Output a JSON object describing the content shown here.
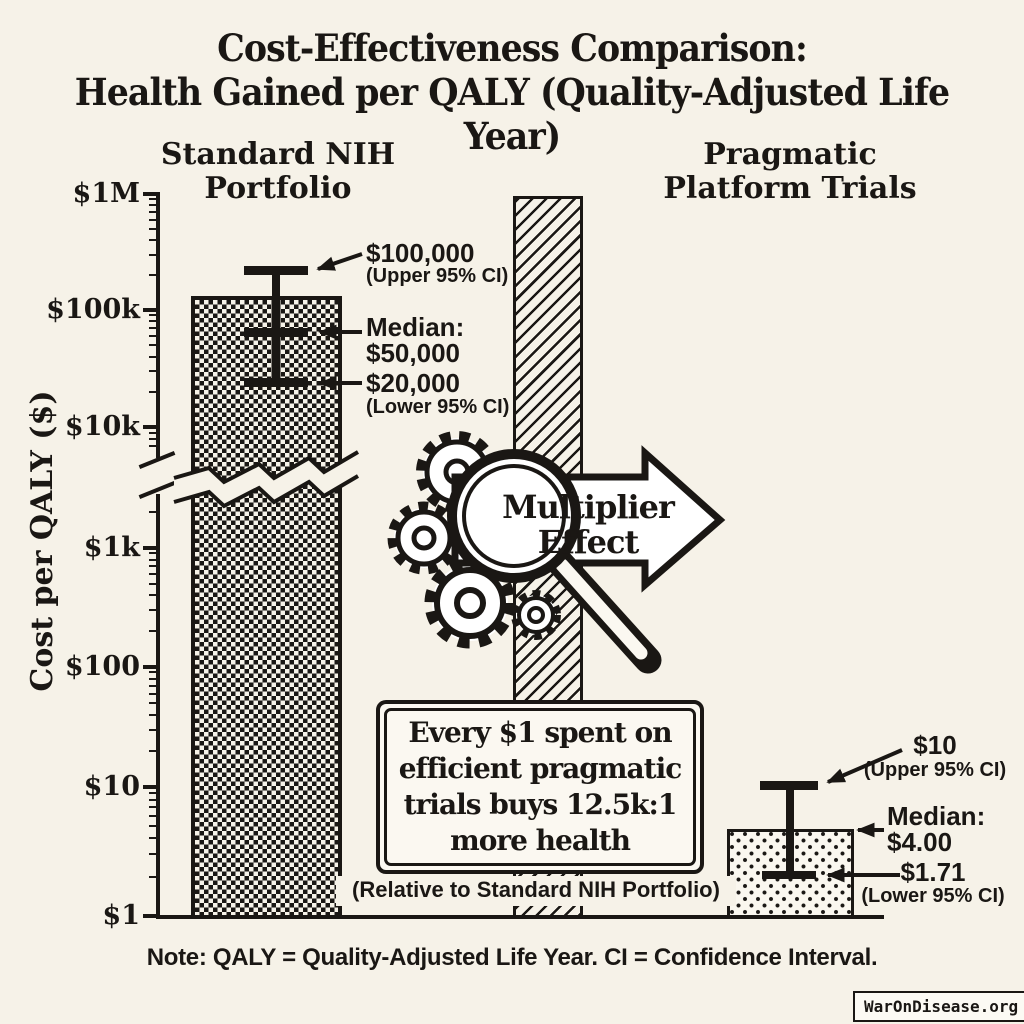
{
  "colors": {
    "background": "#f6f2e8",
    "ink": "#1a1714"
  },
  "title": {
    "line1": "Cost-Effectiveness Comparison:",
    "line2": "Health Gained per QALY (Quality-Adjusted Life Year)"
  },
  "columns": {
    "left_header": "Standard NIH\nPortfolio",
    "right_header": "Pragmatic\nPlatform Trials"
  },
  "y_axis": {
    "label": "Cost per QALY ($)",
    "ticks": [
      "$1M",
      "$100k",
      "$10k",
      "$1k",
      "$100",
      "$10",
      "$1"
    ]
  },
  "left_annotations": {
    "upper_value": "$100,000",
    "upper_caption": "(Upper 95% CI)",
    "median_label": "Median:",
    "median_value": "$50,000",
    "lower_value": "$20,000",
    "lower_caption": "(Lower 95% CI)"
  },
  "right_annotations": {
    "upper_value": "$10",
    "upper_caption": "(Upper 95% CI)",
    "median_label": "Median:",
    "median_value": "$4.00",
    "lower_value": "$1.71",
    "lower_caption": "(Lower 95% CI)"
  },
  "multiplier": {
    "line1": "Multiplier",
    "line2": "Effect"
  },
  "callout": {
    "text": "Every $1 spent on\nefficient pragmatic\ntrials buys 12.5k:1\nmore health",
    "subtext": "(Relative to Standard NIH Portfolio)"
  },
  "note": "Note: QALY = Quality-Adjusted Life Year. CI = Confidence Interval.",
  "watermark": "WarOnDisease.org",
  "chart_data": {
    "type": "bar",
    "title": "Cost-Effectiveness Comparison: Health Gained per QALY (Quality-Adjusted Life Year)",
    "ylabel": "Cost per QALY ($)",
    "yscale": "log",
    "ylim": [
      1,
      1000000
    ],
    "ytick_labels": [
      "$1M",
      "$100k",
      "$10k",
      "$1k",
      "$100",
      "$10",
      "$1"
    ],
    "axis_break_between": [
      "$10k",
      "$1k"
    ],
    "categories": [
      "Standard NIH Portfolio",
      "Pragmatic Platform Trials"
    ],
    "series": [
      {
        "name": "Standard NIH Portfolio",
        "median": 50000,
        "upper_95_ci": 100000,
        "lower_95_ci": 20000
      },
      {
        "name": "Pragmatic Platform Trials",
        "median": 4.0,
        "upper_95_ci": 10,
        "lower_95_ci": 1.71
      }
    ],
    "center_label": "Multiplier Effect",
    "annotation": "Every $1 spent on efficient pragmatic trials buys 12.5k:1 more health (Relative to Standard NIH Portfolio)"
  }
}
